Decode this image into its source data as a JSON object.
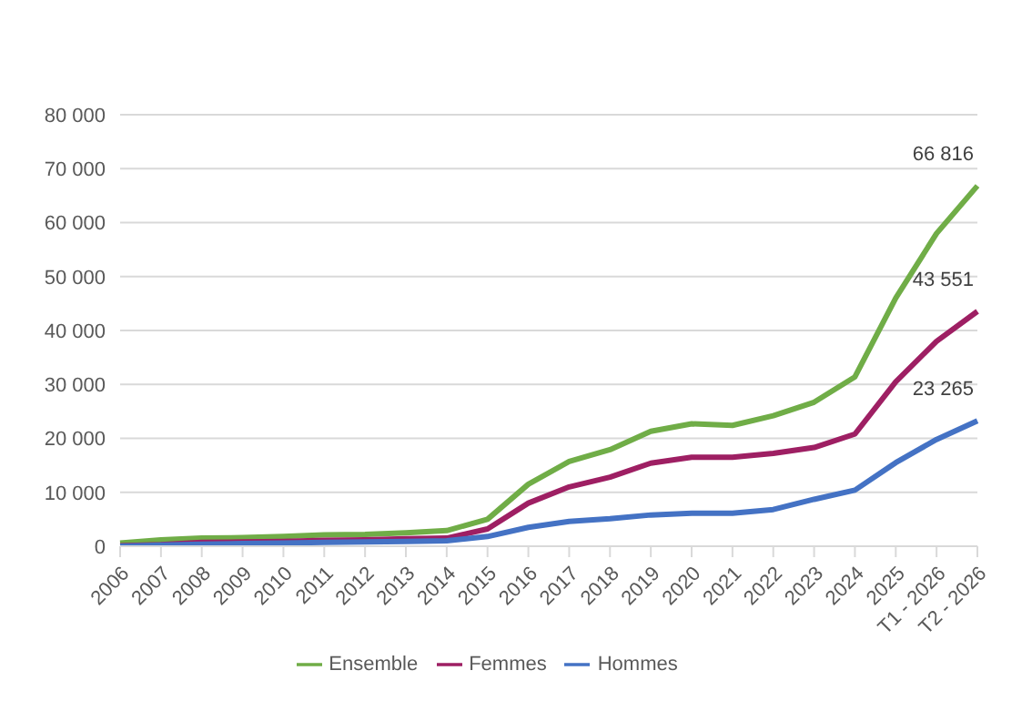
{
  "chart_data": {
    "type": "line",
    "categories": [
      "2006",
      "2007",
      "2008",
      "2009",
      "2010",
      "2011",
      "2012",
      "2013",
      "2014",
      "2015",
      "2016",
      "2017",
      "2018",
      "2019",
      "2020",
      "2021",
      "2022",
      "2023",
      "2024",
      "2025",
      "T1 - 2026",
      "T2 - 2026"
    ],
    "series": [
      {
        "name": "Hommes",
        "color": "#4472c4",
        "values": [
          0,
          200,
          400,
          500,
          600,
          700,
          800,
          900,
          1000,
          1800,
          3500,
          4600,
          5100,
          5800,
          6100,
          6100,
          6800,
          8700,
          10400,
          15500,
          19800,
          23265
        ],
        "value_labels": [
          null,
          null,
          null,
          null,
          null,
          null,
          null,
          null,
          null,
          null,
          null,
          null,
          null,
          null,
          null,
          null,
          null,
          null,
          null,
          null,
          null,
          "23 265"
        ]
      },
      {
        "name": "Femmes",
        "color": "#9e1f63",
        "values": [
          100,
          300,
          700,
          800,
          900,
          1100,
          1200,
          1400,
          1500,
          3200,
          8000,
          11000,
          12800,
          15400,
          16500,
          16500,
          17200,
          18300,
          20800,
          30500,
          38000,
          43551
        ],
        "value_labels": [
          null,
          null,
          null,
          null,
          null,
          null,
          null,
          null,
          null,
          null,
          null,
          null,
          null,
          null,
          null,
          null,
          null,
          null,
          null,
          null,
          null,
          "43 551"
        ]
      },
      {
        "name": "Ensemble",
        "color": "#70ad47",
        "values": [
          600,
          1200,
          1500,
          1600,
          1800,
          2100,
          2200,
          2500,
          2900,
          5000,
          11500,
          15700,
          17900,
          21300,
          22700,
          22400,
          24200,
          26700,
          31400,
          46000,
          58000,
          66816
        ],
        "value_labels": [
          null,
          null,
          null,
          null,
          null,
          null,
          null,
          null,
          null,
          null,
          null,
          null,
          null,
          null,
          null,
          null,
          null,
          null,
          null,
          null,
          null,
          "66 816"
        ]
      }
    ],
    "ylim": [
      0,
      80000
    ],
    "yticks": [
      {
        "value": 0,
        "label": "0"
      },
      {
        "value": 10000,
        "label": "10 000"
      },
      {
        "value": 20000,
        "label": "20 000"
      },
      {
        "value": 30000,
        "label": "30 000"
      },
      {
        "value": 40000,
        "label": "40 000"
      },
      {
        "value": 50000,
        "label": "50 000"
      },
      {
        "value": 60000,
        "label": "60 000"
      },
      {
        "value": 70000,
        "label": "70 000"
      },
      {
        "value": 80000,
        "label": "80 000"
      }
    ],
    "grid": "y",
    "legend": "bottom",
    "marker": "none",
    "line_style": "solid"
  }
}
